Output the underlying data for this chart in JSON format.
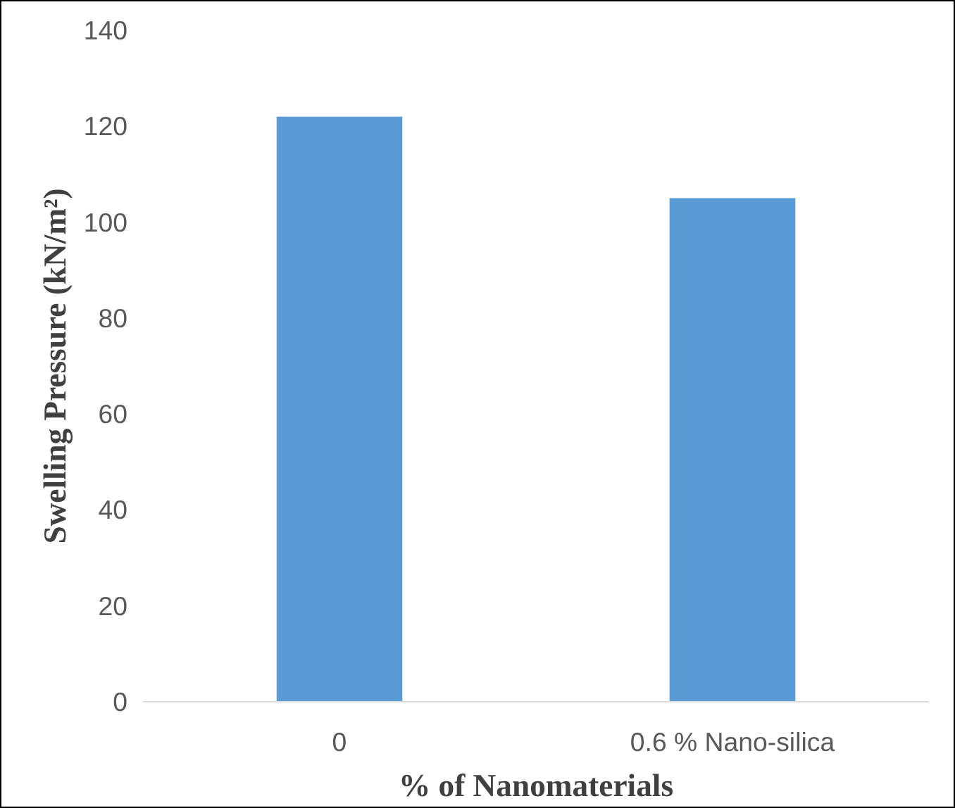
{
  "chart_data": {
    "type": "bar",
    "xlabel": "% of Nanomaterials",
    "ylabel": "Swelling Pressure (kN/m²)",
    "categories": [
      "0",
      "0.6 % Nano-silica"
    ],
    "values": [
      122,
      105
    ],
    "color": "#5b9bd5",
    "ylim": [
      0,
      140
    ],
    "yticks": [
      0,
      20,
      40,
      60,
      80,
      100,
      120,
      140
    ],
    "grid": false
  }
}
